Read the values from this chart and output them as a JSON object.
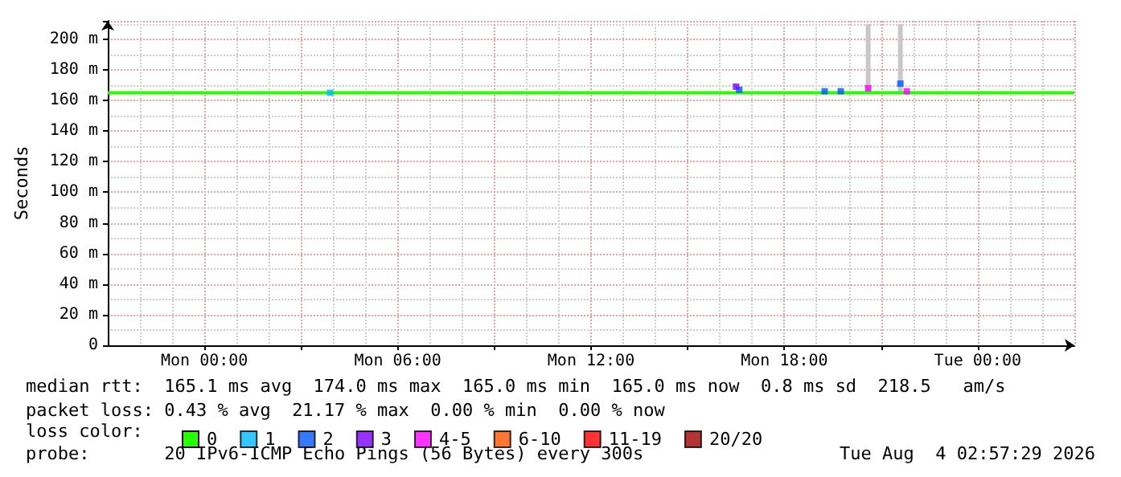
{
  "chart_data": {
    "type": "line",
    "ylabel": "Seconds",
    "legend_title": "loss color:",
    "legend": "bottom left",
    "grid": true,
    "line_style": "solid",
    "xlim": [
      "2026-08-02T21:00",
      "2026-08-04T03:00"
    ],
    "xticks": [
      {
        "value": "2026-08-02T21:00",
        "label": null
      },
      {
        "value": "2026-08-03T00:00",
        "label": "Mon 00:00"
      },
      {
        "value": "2026-08-03T03:00",
        "label": null
      },
      {
        "value": "2026-08-03T06:00",
        "label": "Mon 06:00"
      },
      {
        "value": "2026-08-03T09:00",
        "label": null
      },
      {
        "value": "2026-08-03T12:00",
        "label": "Mon 12:00"
      },
      {
        "value": "2026-08-03T15:00",
        "label": null
      },
      {
        "value": "2026-08-03T18:00",
        "label": "Mon 18:00"
      },
      {
        "value": "2026-08-03T21:00",
        "label": null
      },
      {
        "value": "2026-08-04T00:00",
        "label": "Tue 00:00"
      },
      {
        "value": "2026-08-04T03:00",
        "label": null
      }
    ],
    "ylim": [
      0,
      212
    ],
    "yticks": [
      0,
      {
        "value": 20,
        "label": "20 m"
      },
      {
        "value": 40,
        "label": "40 m"
      },
      {
        "value": 60,
        "label": "60 m"
      },
      {
        "value": 80,
        "label": "80 m"
      },
      {
        "value": 100,
        "label": "100 m"
      },
      {
        "value": 120,
        "label": "120 m"
      },
      {
        "value": 140,
        "label": "140 m"
      },
      {
        "value": 160,
        "label": "160 m"
      },
      {
        "value": 180,
        "label": "180 m"
      },
      {
        "value": 200,
        "label": "200 m"
      }
    ],
    "series": [
      {
        "type": "bar",
        "color": "#c8c8c8",
        "x": [
          "2026-08-03T20:36",
          "2026-08-03T21:36"
        ],
        "base": [
          165,
          165
        ],
        "values": [
          45,
          45
        ]
      },
      {
        "name": "0",
        "color": "#26ff00",
        "x": [
          "2026-08-02T21:00",
          "2026-08-04T03:00"
        ],
        "values": [
          165,
          165
        ]
      },
      {
        "name": "1",
        "type": "scatter",
        "marker": "square",
        "color": "#00b8ff",
        "x": [
          "2026-08-03T03:54"
        ],
        "values": [
          165
        ]
      },
      {
        "name": "2",
        "type": "scatter",
        "marker": "square",
        "color": "#0059ff",
        "x": [
          "2026-08-03T16:36",
          "2026-08-03T19:15",
          "2026-08-03T19:45",
          "2026-08-03T21:36"
        ],
        "values": [
          167,
          166,
          166,
          171
        ]
      },
      {
        "name": "3",
        "type": "scatter",
        "marker": "square",
        "color": "#7e00ff",
        "x": [
          "2026-08-03T16:30"
        ],
        "values": [
          169
        ]
      },
      {
        "name": "4-5",
        "type": "scatter",
        "marker": "square",
        "color": "#ff00ff",
        "x": [
          "2026-08-03T20:36",
          "2026-08-03T21:48"
        ],
        "values": [
          168,
          166
        ]
      },
      {
        "name": "6-10",
        "type": "scatter",
        "marker": "square",
        "color": "#ff5500"
      },
      {
        "name": "11-19",
        "type": "scatter",
        "marker": "square",
        "color": "#ff0000"
      },
      {
        "name": "20/20",
        "type": "scatter",
        "marker": "square",
        "color": "#a10000"
      }
    ],
    "annotations": [
      "median rtt:  165.1 ms avg  174.0 ms max  165.0 ms min  165.0 ms now  0.8 ms sd  218.5   am/s",
      "packet loss: 0.43 % avg  21.17 % max  0.00 % min  0.00 % now",
      "probe:       20 IPv6-ICMP Echo Pings (56 Bytes) every 300s",
      "Tue Aug  4 02:57:29 2026"
    ]
  }
}
